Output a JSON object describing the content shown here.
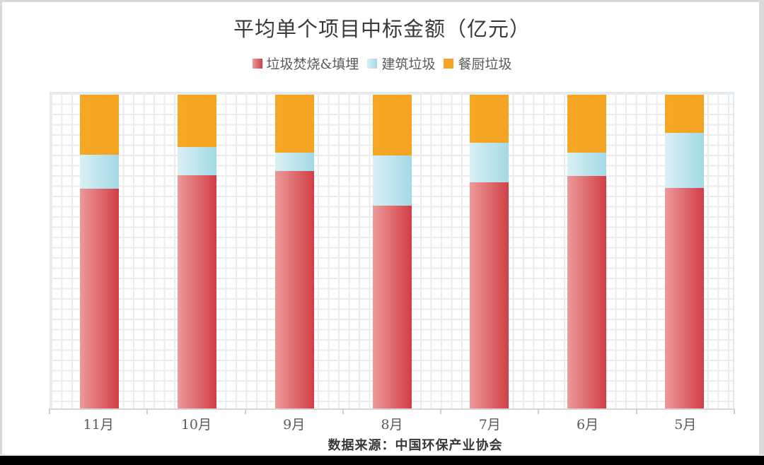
{
  "page": {
    "title": "平均单个项目中标金额（亿元）",
    "source_note": "数据来源：中国环保产业协会"
  },
  "chart_data": {
    "type": "bar",
    "stacked": true,
    "percent_stacked": true,
    "title": "平均单个项目中标金额（亿元）",
    "xlabel": "",
    "ylabel": "",
    "legend_position": "top",
    "grid": true,
    "y_axis_labels_visible": false,
    "values_unit": "percent_of_bar_height_estimated",
    "categories": [
      "11月",
      "10月",
      "9月",
      "8月",
      "7月",
      "6月",
      "5月"
    ],
    "series": [
      {
        "name": "垃圾焚烧&填埋",
        "color": "#D85C5C",
        "gradient": [
          "#EC9A9A",
          "#D23E46"
        ],
        "values": [
          70.1,
          74.4,
          75.7,
          64.7,
          72.1,
          74.2,
          70.3
        ]
      },
      {
        "name": "建筑垃圾",
        "color": "#A9DBE8",
        "gradient": [
          "#D9F0F4",
          "#A3D9E6"
        ],
        "values": [
          10.8,
          9.0,
          5.8,
          16.0,
          12.6,
          7.4,
          17.5
        ]
      },
      {
        "name": "餐厨垃圾",
        "color": "#F5A623",
        "gradient": [
          "#F5A724",
          "#F4A322"
        ],
        "values": [
          19.1,
          16.6,
          18.4,
          19.3,
          15.3,
          18.4,
          12.1
        ]
      }
    ]
  }
}
